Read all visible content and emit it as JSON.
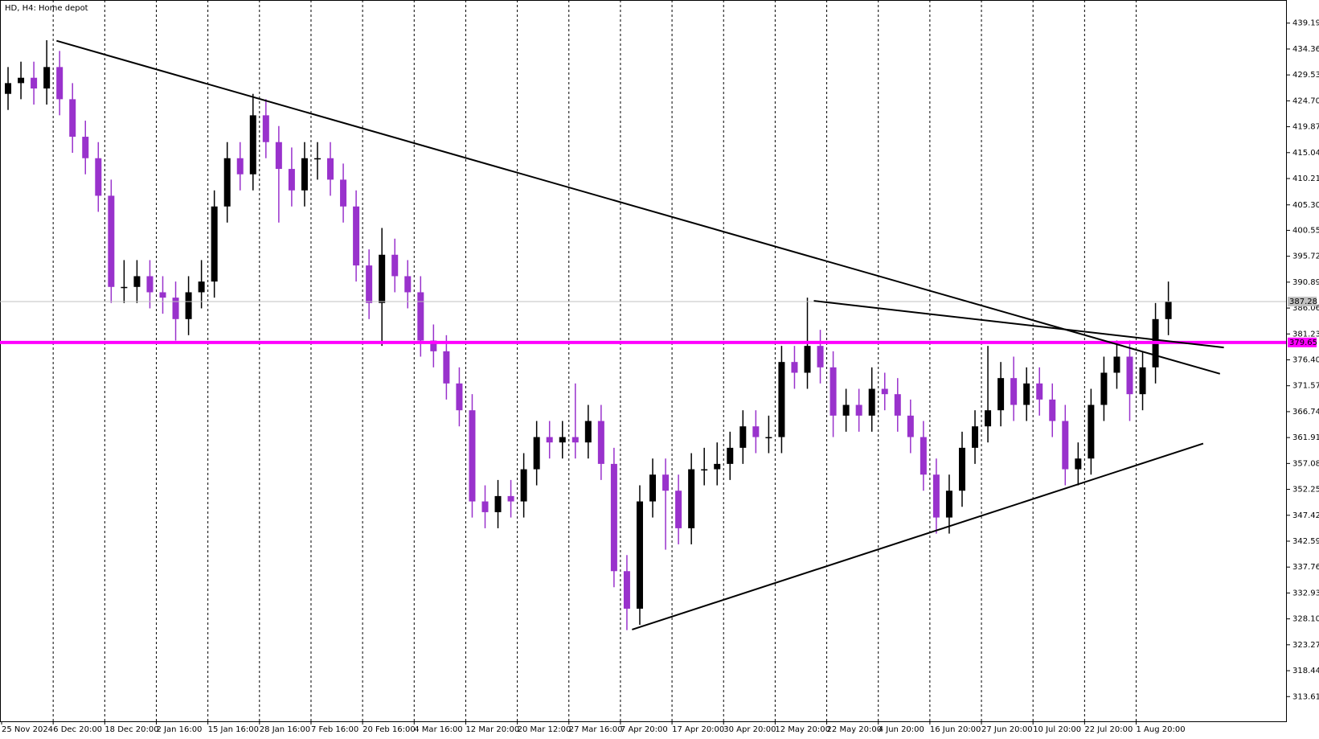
{
  "chart_data": {
    "type": "candlestick",
    "title": "HD, H4:  Home depot",
    "categories": [
      "25 Nov 2024",
      null,
      null,
      null,
      "6 Dec 20:00",
      null,
      null,
      null,
      "18 Dec 20:00",
      null,
      null,
      null,
      "2 Jan 16:00",
      null,
      null,
      null,
      "15 Jan 16:00",
      null,
      null,
      null,
      "28 Jan 16:00",
      null,
      null,
      null,
      "7 Feb 16:00",
      null,
      null,
      null,
      "20 Feb 16:00",
      null,
      null,
      null,
      "4 Mar 16:00",
      null,
      null,
      null,
      "12 Mar 20:00",
      null,
      null,
      null,
      "20 Mar 12:00",
      null,
      null,
      null,
      "27 Mar 16:00",
      null,
      null,
      null,
      "7 Apr 20:00",
      null,
      null,
      null,
      "17 Apr 20:00",
      null,
      null,
      null,
      "30 Apr 20:00",
      null,
      null,
      null,
      "12 May 20:00",
      null,
      null,
      null,
      "22 May 20:00",
      null,
      null,
      null,
      "4 Jun 20:00",
      null,
      null,
      null,
      "16 Jun 20:00",
      null,
      null,
      null,
      "27 Jun 20:00",
      null,
      null,
      null,
      "10 Jul 20:00",
      null,
      null,
      null,
      "22 Jul 20:00",
      null,
      null,
      null,
      "1 Aug 20:00",
      null,
      null
    ],
    "open": [
      426,
      428,
      429,
      427,
      431,
      425,
      418,
      414,
      407,
      390,
      390,
      392,
      389,
      388,
      384,
      389,
      391,
      405,
      414,
      411,
      422,
      417,
      412,
      408,
      414,
      414,
      410,
      405,
      394,
      387,
      396,
      392,
      389,
      380,
      378,
      372,
      367,
      350,
      348,
      351,
      350,
      356,
      362,
      361,
      362,
      361,
      365,
      357,
      337,
      330,
      350,
      355,
      352,
      345,
      356,
      356,
      357,
      360,
      364,
      362,
      362,
      376,
      374,
      379,
      375,
      366,
      368,
      366,
      371,
      370,
      366,
      362,
      355,
      347,
      352,
      360,
      364,
      367,
      373,
      368,
      372,
      369,
      365,
      356,
      358,
      368,
      374,
      377,
      370,
      375,
      384
    ],
    "high": [
      431,
      432,
      432,
      436,
      434,
      428,
      421,
      417,
      410,
      395,
      395,
      395,
      392,
      391,
      392,
      395,
      408,
      417,
      417,
      426,
      425,
      420,
      416,
      417,
      417,
      417,
      413,
      408,
      397,
      401,
      399,
      395,
      392,
      383,
      381,
      375,
      370,
      353,
      354,
      354,
      359,
      365,
      365,
      365,
      372,
      368,
      368,
      360,
      340,
      353,
      358,
      358,
      355,
      359,
      360,
      361,
      363,
      367,
      367,
      366,
      379,
      379,
      388,
      382,
      378,
      371,
      371,
      375,
      374,
      373,
      369,
      365,
      358,
      355,
      363,
      367,
      379,
      376,
      377,
      375,
      375,
      372,
      368,
      361,
      371,
      377,
      380,
      380,
      378,
      387,
      391
    ],
    "low": [
      423,
      425,
      424,
      424,
      422,
      415,
      411,
      404,
      387,
      387,
      387,
      386,
      385,
      380,
      381,
      386,
      388,
      402,
      408,
      408,
      414,
      402,
      405,
      405,
      410,
      407,
      402,
      391,
      384,
      379,
      389,
      386,
      377,
      375,
      369,
      364,
      347,
      345,
      345,
      347,
      347,
      353,
      358,
      358,
      358,
      358,
      354,
      334,
      326,
      327,
      347,
      341,
      342,
      342,
      353,
      353,
      354,
      357,
      359,
      359,
      359,
      371,
      371,
      372,
      362,
      363,
      363,
      363,
      367,
      363,
      359,
      352,
      344,
      344,
      349,
      357,
      361,
      364,
      365,
      365,
      366,
      362,
      353,
      353,
      355,
      365,
      371,
      365,
      367,
      372,
      381
    ],
    "close": [
      428,
      429,
      427,
      431,
      425,
      418,
      414,
      407,
      390,
      390,
      392,
      389,
      388,
      384,
      389,
      391,
      405,
      414,
      411,
      422,
      417,
      412,
      408,
      414,
      414,
      410,
      405,
      394,
      387,
      396,
      392,
      389,
      380,
      378,
      372,
      367,
      350,
      348,
      351,
      350,
      356,
      362,
      361,
      362,
      361,
      365,
      357,
      337,
      330,
      350,
      355,
      352,
      345,
      356,
      356,
      357,
      360,
      364,
      362,
      362,
      376,
      374,
      379,
      375,
      366,
      368,
      366,
      371,
      370,
      366,
      362,
      355,
      347,
      352,
      360,
      364,
      367,
      373,
      368,
      372,
      369,
      365,
      356,
      358,
      368,
      374,
      377,
      370,
      375,
      384,
      387.28
    ],
    "up_color": "#000000",
    "down_color": "#9932cc",
    "ylim": [
      309.0,
      443.5
    ],
    "yticks": [
      439.19,
      434.36,
      429.53,
      {
        "value": 424.7,
        "label": "424.70"
      },
      419.87,
      415.04,
      410.21,
      {
        "value": 405.3,
        "label": "405.30"
      },
      400.55,
      395.72,
      390.89,
      386.06,
      381.23,
      {
        "value": 376.4,
        "label": "376.40"
      },
      371.57,
      366.74,
      361.91,
      357.08,
      352.25,
      347.42,
      342.59,
      337.76,
      332.93,
      {
        "value": 328.1,
        "label": "328.10"
      },
      323.27,
      318.44,
      313.61
    ],
    "hlines": [
      {
        "value": 379.65,
        "color": "#ff00ff"
      },
      {
        "value": 387.28,
        "color": "#c0c0c0"
      }
    ],
    "trendlines": [
      {
        "x": [
          3.76,
          94
        ],
        "y": [
          435.9,
          373.8
        ]
      },
      {
        "x": [
          62.5,
          94.3
        ],
        "y": [
          387.4,
          378.7
        ]
      },
      {
        "x": [
          48.4,
          92.7
        ],
        "y": [
          326.1,
          360.8
        ]
      }
    ]
  }
}
